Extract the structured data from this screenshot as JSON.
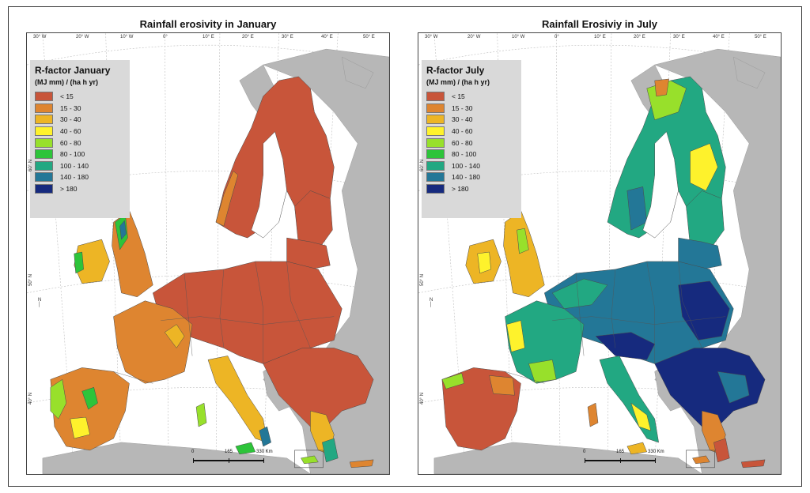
{
  "panels": [
    {
      "title": "Rainfall erosivity in January",
      "legend_title": "R-factor January",
      "legend_unit": "(MJ mm) / (ha h yr)",
      "lon_ticks": [
        "30° W",
        "20° W",
        "10° W",
        "0°",
        "10° E",
        "20° E",
        "30° E",
        "40° E",
        "50° E"
      ],
      "lat_ticks": [
        "60° N",
        "50° N",
        "40° N"
      ],
      "scale_labels": [
        "0",
        "165",
        "330 Km"
      ]
    },
    {
      "title": "Rainfall Erosiviy in July",
      "legend_title": "R-factor July",
      "legend_unit": "(MJ mm) / (ha h yr)",
      "lon_ticks": [
        "30° W",
        "20° W",
        "10° W",
        "0°",
        "10° E",
        "20° E",
        "30° E",
        "40° E",
        "50° E"
      ],
      "lat_ticks": [
        "60° N",
        "50° N",
        "40° N"
      ],
      "scale_labels": [
        "0",
        "165",
        "330 Km"
      ]
    }
  ],
  "north_label": "N",
  "legend_classes": [
    {
      "label": "< 15",
      "color": "#c8553a"
    },
    {
      "label": "15 - 30",
      "color": "#de8530"
    },
    {
      "label": "30 - 40",
      "color": "#edb525"
    },
    {
      "label": "40 - 60",
      "color": "#fef22c"
    },
    {
      "label": "60 - 80",
      "color": "#98e02b"
    },
    {
      "label": "80 - 100",
      "color": "#2dc43a"
    },
    {
      "label": "100 - 140",
      "color": "#22a882"
    },
    {
      "label": "140 - 180",
      "color": "#237797"
    },
    {
      "label": "> 180",
      "color": "#162a7e"
    }
  ],
  "colors": {
    "sea": "#ffffff",
    "non_eu_land": "#b7b7b7",
    "border": "#4a4a4a"
  }
}
